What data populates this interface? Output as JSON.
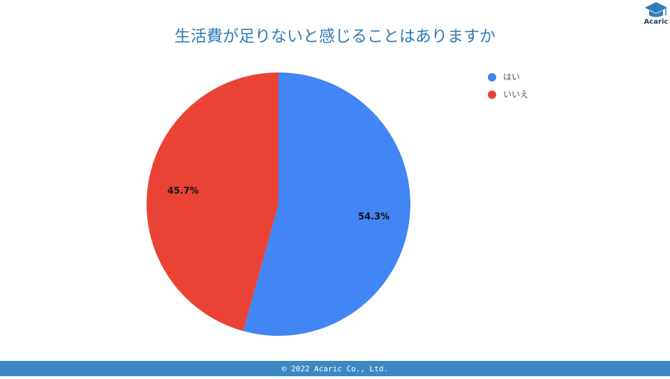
{
  "chart_data": {
    "type": "pie",
    "title": "生活費が足りないと感じることはありますか",
    "categories": [
      "はい",
      "いいえ"
    ],
    "values": [
      54.3,
      45.7
    ],
    "value_labels": [
      "54.3%",
      "45.7%"
    ],
    "colors": [
      "#4285f4",
      "#ea4335"
    ],
    "legend": "top-right"
  },
  "logo": "Acaric",
  "footer": "© 2022 Acaric Co., Ltd."
}
